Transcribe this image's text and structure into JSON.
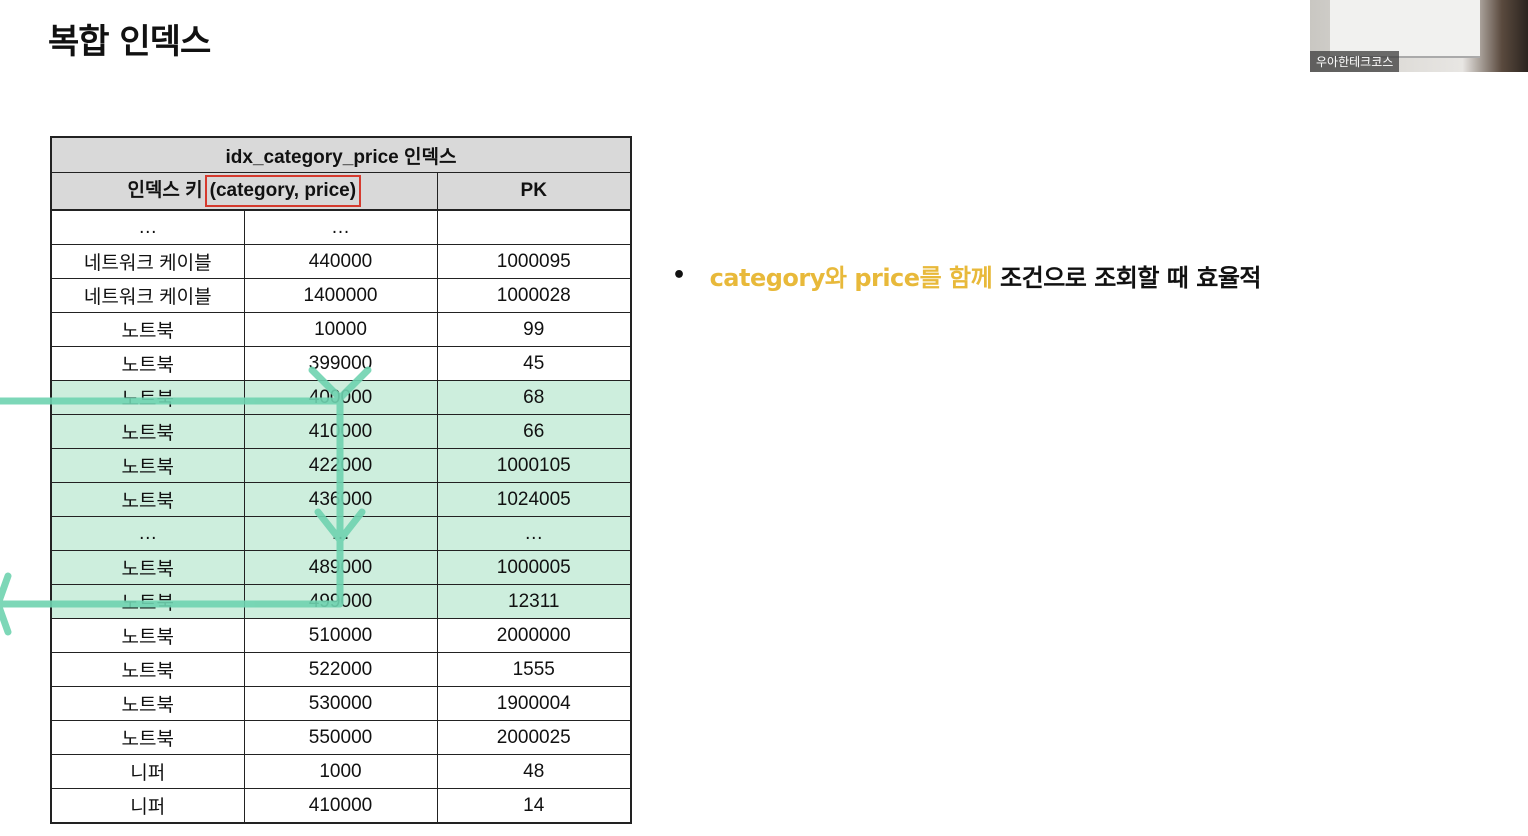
{
  "slide": {
    "title": "복합 인덱스"
  },
  "table": {
    "title": "idx_category_price 인덱스",
    "key_header_prefix": "인덱스 키",
    "key_header_box": "(category, price)",
    "pk_header": "PK",
    "rows": [
      {
        "category": "…",
        "price": "…",
        "pk": "",
        "highlight": false
      },
      {
        "category": "네트워크 케이블",
        "price": "440000",
        "pk": "1000095",
        "highlight": false
      },
      {
        "category": "네트워크 케이블",
        "price": "1400000",
        "pk": "1000028",
        "highlight": false
      },
      {
        "category": "노트북",
        "price": "10000",
        "pk": "99",
        "highlight": false
      },
      {
        "category": "노트북",
        "price": "399000",
        "pk": "45",
        "highlight": false
      },
      {
        "category": "노트북",
        "price": "400000",
        "pk": "68",
        "highlight": true
      },
      {
        "category": "노트북",
        "price": "410000",
        "pk": "66",
        "highlight": true
      },
      {
        "category": "노트북",
        "price": "422000",
        "pk": "1000105",
        "highlight": true
      },
      {
        "category": "노트북",
        "price": "436000",
        "pk": "1024005",
        "highlight": true
      },
      {
        "category": "…",
        "price": "…",
        "pk": "…",
        "highlight": true
      },
      {
        "category": "노트북",
        "price": "489000",
        "pk": "1000005",
        "highlight": true
      },
      {
        "category": "노트북",
        "price": "499000",
        "pk": "12311",
        "highlight": true
      },
      {
        "category": "노트북",
        "price": "510000",
        "pk": "2000000",
        "highlight": false
      },
      {
        "category": "노트북",
        "price": "522000",
        "pk": "1555",
        "highlight": false
      },
      {
        "category": "노트북",
        "price": "530000",
        "pk": "1900004",
        "highlight": false
      },
      {
        "category": "노트북",
        "price": "550000",
        "pk": "2000025",
        "highlight": false
      },
      {
        "category": "니퍼",
        "price": "1000",
        "pk": "48",
        "highlight": false
      },
      {
        "category": "니퍼",
        "price": "410000",
        "pk": "14",
        "highlight": false
      }
    ]
  },
  "bullet": {
    "highlight_text": "category와 price를 함께",
    "rest_text": "조건으로 조회할 때 효율적"
  },
  "webcam": {
    "label": "우아한테크코스"
  },
  "colors": {
    "highlight_row": "#cdeedd",
    "arrow": "#6fd3b0",
    "key_box_border": "#d63a2e",
    "bullet_highlight": "#e8b93a",
    "header_bg": "#d9d9d9"
  }
}
